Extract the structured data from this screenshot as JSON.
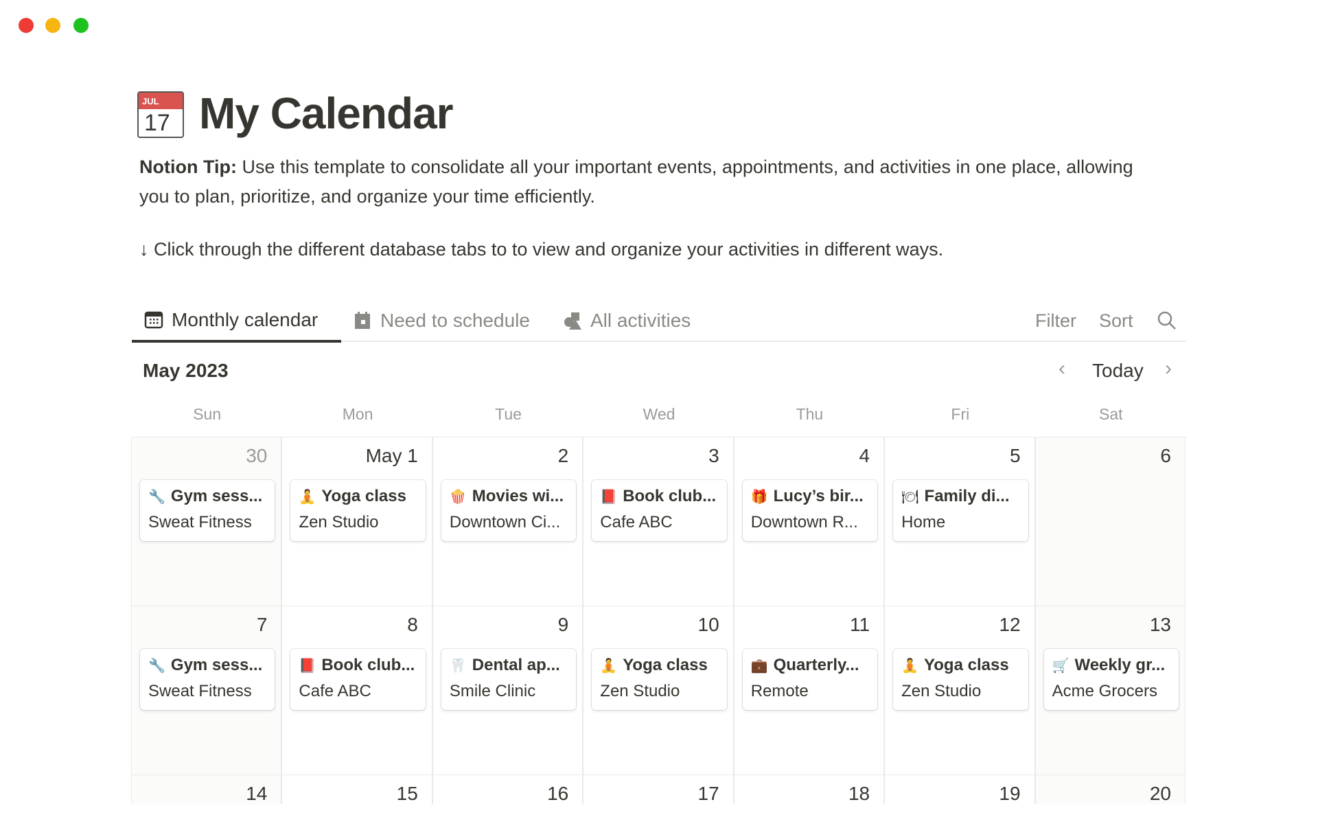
{
  "window": {
    "controls": [
      {
        "name": "close",
        "color": "#ee3b36"
      },
      {
        "name": "minimize",
        "color": "#f7b512"
      },
      {
        "name": "zoom",
        "color": "#1ec11e"
      }
    ]
  },
  "page": {
    "icon": "calendar-17-icon",
    "icon_month": "JUL",
    "icon_day": "17",
    "title": "My Calendar",
    "tip_label": "Notion Tip:",
    "tip_text": " Use this template to consolidate all your important events, appointments, and activities in one place, allowing you to plan, prioritize, and organize your time efficiently.",
    "instruction": "↓ Click through the different database tabs to to view and organize your activities in different ways."
  },
  "tabs": [
    {
      "label": "Monthly calendar",
      "icon": "calendar-icon",
      "active": true
    },
    {
      "label": "Need to schedule",
      "icon": "calendar-page-icon",
      "active": false
    },
    {
      "label": "All activities",
      "icon": "shapes-icon",
      "active": false
    }
  ],
  "toolbar": {
    "filter": "Filter",
    "sort": "Sort",
    "search_icon": "search-icon"
  },
  "calendar": {
    "month": "May 2023",
    "today": "Today",
    "weekdays": [
      "Sun",
      "Mon",
      "Tue",
      "Wed",
      "Thu",
      "Fri",
      "Sat"
    ],
    "weeks": [
      [
        {
          "day": "30",
          "muted": true,
          "event": {
            "emoji": "🔧",
            "title": "Gym sess...",
            "location": "Sweat Fitness"
          }
        },
        {
          "day": "May 1",
          "event": {
            "emoji": "🧘",
            "title": "Yoga class",
            "location": "Zen Studio"
          }
        },
        {
          "day": "2",
          "event": {
            "emoji": "🍿",
            "title": "Movies wi...",
            "location": "Downtown Ci..."
          }
        },
        {
          "day": "3",
          "event": {
            "emoji": "📕",
            "title": "Book club...",
            "location": "Cafe ABC"
          }
        },
        {
          "day": "4",
          "event": {
            "emoji": "🎁",
            "title": "Lucy’s bir...",
            "location": "Downtown R..."
          }
        },
        {
          "day": "5",
          "event": {
            "emoji": "🍽",
            "title": "Family di...",
            "location": "Home"
          }
        },
        {
          "day": "6"
        }
      ],
      [
        {
          "day": "7",
          "event": {
            "emoji": "🔧",
            "title": "Gym sess...",
            "location": "Sweat Fitness"
          }
        },
        {
          "day": "8",
          "event": {
            "emoji": "📕",
            "title": "Book club...",
            "location": "Cafe ABC"
          }
        },
        {
          "day": "9",
          "event": {
            "emoji": "🦷",
            "title": "Dental ap...",
            "location": "Smile Clinic"
          }
        },
        {
          "day": "10",
          "event": {
            "emoji": "🧘",
            "title": "Yoga class",
            "location": "Zen Studio"
          }
        },
        {
          "day": "11",
          "event": {
            "emoji": "💼",
            "title": "Quarterly...",
            "location": "Remote"
          }
        },
        {
          "day": "12",
          "event": {
            "emoji": "🧘",
            "title": "Yoga class",
            "location": "Zen Studio"
          }
        },
        {
          "day": "13",
          "event": {
            "emoji": "🛒",
            "title": "Weekly gr...",
            "location": "Acme Grocers"
          }
        }
      ],
      [
        {
          "day": "14"
        },
        {
          "day": "15"
        },
        {
          "day": "16"
        },
        {
          "day": "17"
        },
        {
          "day": "18"
        },
        {
          "day": "19"
        },
        {
          "day": "20"
        }
      ]
    ]
  }
}
